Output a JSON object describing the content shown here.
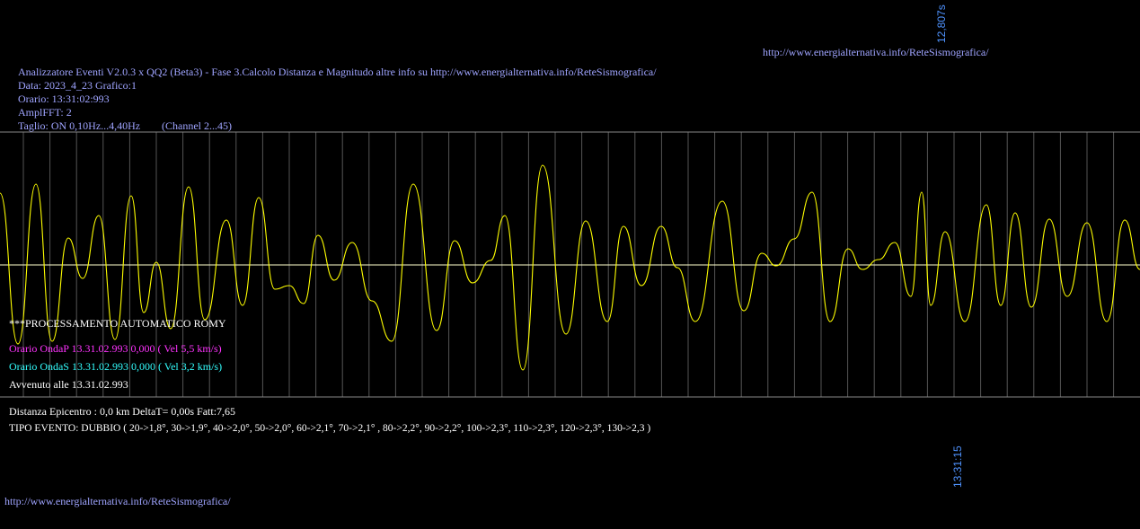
{
  "top_url": "http://www.energialternativa.info/ReteSismografica/",
  "top_time_mark": "12,807s",
  "header": {
    "line1": "Analizzatore Eventi V2.0.3 x QQ2 (Beta3) - Fase 3.Calcolo Distanza e Magnitudo altre info su http://www.energialternativa.info/ReteSismografica/",
    "line2": "Data: 2023_4_23 Grafico:1",
    "line3": "Orario: 13:31:02:993",
    "line4": "AmplFFT: 2",
    "line5": "Taglio: ON 0,10Hz...4,40Hz",
    "channel": "(Channel 2...45)"
  },
  "processing": "***PROCESSAMENTO AUTOMATICO ROMY",
  "onda_p": "Orario OndaP 13.31.02.993  0,000 ( Vel 5,5 km/s)",
  "onda_s": "Orario OndaS 13.31.02.993  0,000 ( Vel 3,2 km/s)",
  "avvenuto": "Avvenuto alle 13.31.02.993",
  "distanza": "Distanza Epicentro : 0,0 km DeltaT= 0,00s  Fatt:7,65",
  "tipo_evento": "TIPO EVENTO: DUBBIO ( 20->1,8°, 30->1,9°, 40->2,0°, 50->2,0°, 60->2,1°, 70->2,1° , 80->2,2°, 90->2,2°, 100->2,3°, 110->2,3°, 120->2,3°, 130->2,3 )",
  "bottom_time_mark": "13:31:15",
  "bottom_url": "http://www.energialternativa.info/ReteSismografica/",
  "colors": {
    "background": "#000000",
    "header_text": "#9fa4ff",
    "wave": "#ffff00",
    "grid": "#555555",
    "baseline": "#ffffcc",
    "onda_p": "#ff33ff",
    "onda_s": "#33ffff",
    "time_mark": "#4f93ff"
  }
}
